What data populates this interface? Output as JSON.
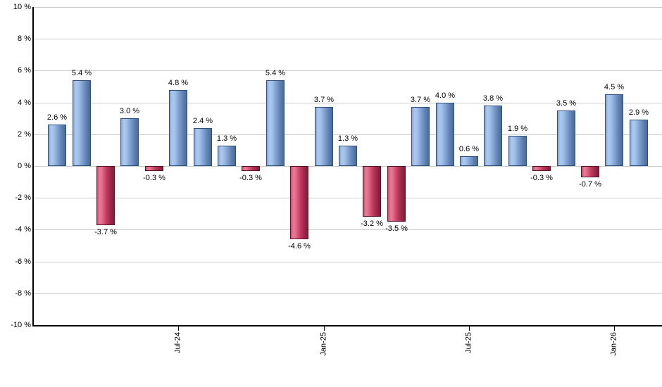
{
  "chart_data": {
    "type": "bar",
    "title": "",
    "xlabel": "",
    "ylabel": "",
    "grid": true,
    "legend": false,
    "y_axis": {
      "unit": "%",
      "min": -10,
      "max": 10,
      "step": 2,
      "tick_values": [
        10,
        8,
        6,
        4,
        2,
        0,
        -2,
        -4,
        -6,
        -8,
        -10
      ],
      "tick_labels": [
        "10 %",
        "8 %",
        "6 %",
        "4 %",
        "2 %",
        "0 %",
        "-2 %",
        "-4 %",
        "-6 %",
        "-8 %",
        "-10 %"
      ]
    },
    "x_axis": {
      "tick_labels": [
        "Jul-24",
        "Jan-25",
        "Jul-25",
        "Jan-26"
      ],
      "tick_bar_indices": [
        5,
        11,
        17,
        23
      ]
    },
    "bars": [
      {
        "value": 2.6,
        "label": "2.6 %"
      },
      {
        "value": 5.4,
        "label": "5.4 %"
      },
      {
        "value": -3.7,
        "label": "-3.7 %"
      },
      {
        "value": 3.0,
        "label": "3.0 %"
      },
      {
        "value": -0.3,
        "label": "-0.3 %"
      },
      {
        "value": 4.8,
        "label": "4.8 %"
      },
      {
        "value": 2.4,
        "label": "2.4 %"
      },
      {
        "value": 1.3,
        "label": "1.3 %"
      },
      {
        "value": -0.3,
        "label": "-0.3 %"
      },
      {
        "value": 5.4,
        "label": "5.4 %"
      },
      {
        "value": -4.6,
        "label": "-4.6 %"
      },
      {
        "value": 3.7,
        "label": "3.7 %"
      },
      {
        "value": 1.3,
        "label": "1.3 %"
      },
      {
        "value": -3.2,
        "label": "-3.2 %"
      },
      {
        "value": -3.5,
        "label": "-3.5 %"
      },
      {
        "value": 3.7,
        "label": "3.7 %"
      },
      {
        "value": 4.0,
        "label": "4.0 %"
      },
      {
        "value": 0.6,
        "label": "0.6 %"
      },
      {
        "value": 3.8,
        "label": "3.8 %"
      },
      {
        "value": 1.9,
        "label": "1.9 %"
      },
      {
        "value": -0.3,
        "label": "-0.3 %"
      },
      {
        "value": 3.5,
        "label": "3.5 %"
      },
      {
        "value": -0.7,
        "label": "-0.7 %"
      },
      {
        "value": 4.5,
        "label": "4.5 %"
      },
      {
        "value": 2.9,
        "label": "2.9 %"
      }
    ],
    "colors": {
      "positive_fill": "#7e9fd0",
      "positive_highlight": "#abc9f0",
      "positive_dark": "#4a6b9a",
      "positive_border": "#2f4f7d",
      "negative_fill": "#c43a5f",
      "negative_highlight": "#ea7b97",
      "negative_dark": "#7a1f38",
      "negative_border": "#5c132c",
      "gridline": "#cccccc",
      "axis": "#000000",
      "label_text": "#000000",
      "background": "#ffffff"
    }
  }
}
